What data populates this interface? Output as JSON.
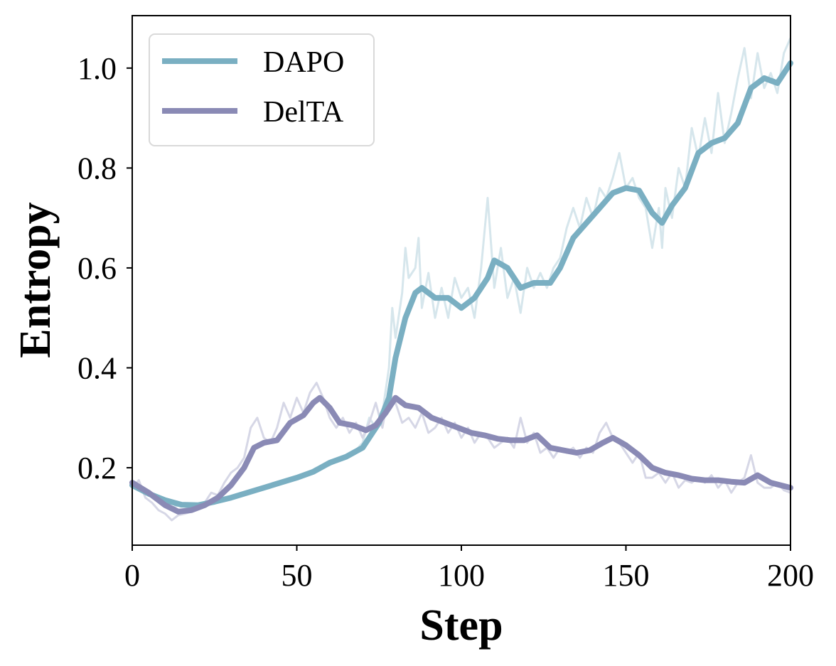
{
  "chart_data": {
    "type": "line",
    "title": "",
    "xlabel": "Step",
    "ylabel": "Entropy",
    "xlim": [
      0,
      200
    ],
    "ylim": [
      0.045,
      1.105
    ],
    "xticks": [
      0,
      50,
      100,
      150,
      200
    ],
    "xtick_labels": [
      "0",
      "50",
      "100",
      "150",
      "200"
    ],
    "yticks": [
      0.2,
      0.4,
      0.6,
      0.8,
      1.0
    ],
    "ytick_labels": [
      "0.2",
      "0.4",
      "0.6",
      "0.8",
      "1.0"
    ],
    "grid": false,
    "legend_position": "top-left",
    "series": [
      {
        "name": "DAPO",
        "color": "#7aafc2",
        "raw_color": "#d6e6ec",
        "smoothed": [
          [
            0,
            0.165
          ],
          [
            5,
            0.148
          ],
          [
            10,
            0.135
          ],
          [
            15,
            0.126
          ],
          [
            20,
            0.125
          ],
          [
            25,
            0.132
          ],
          [
            30,
            0.14
          ],
          [
            35,
            0.15
          ],
          [
            40,
            0.16
          ],
          [
            45,
            0.17
          ],
          [
            50,
            0.18
          ],
          [
            55,
            0.192
          ],
          [
            60,
            0.21
          ],
          [
            65,
            0.222
          ],
          [
            70,
            0.24
          ],
          [
            75,
            0.29
          ],
          [
            78,
            0.34
          ],
          [
            80,
            0.42
          ],
          [
            83,
            0.5
          ],
          [
            86,
            0.55
          ],
          [
            88,
            0.56
          ],
          [
            92,
            0.54
          ],
          [
            96,
            0.54
          ],
          [
            100,
            0.52
          ],
          [
            104,
            0.54
          ],
          [
            108,
            0.58
          ],
          [
            110,
            0.615
          ],
          [
            114,
            0.6
          ],
          [
            118,
            0.56
          ],
          [
            122,
            0.57
          ],
          [
            127,
            0.57
          ],
          [
            130,
            0.6
          ],
          [
            134,
            0.66
          ],
          [
            138,
            0.69
          ],
          [
            142,
            0.72
          ],
          [
            146,
            0.75
          ],
          [
            150,
            0.76
          ],
          [
            154,
            0.755
          ],
          [
            158,
            0.71
          ],
          [
            161,
            0.69
          ],
          [
            164,
            0.725
          ],
          [
            168,
            0.76
          ],
          [
            172,
            0.83
          ],
          [
            176,
            0.85
          ],
          [
            180,
            0.86
          ],
          [
            184,
            0.89
          ],
          [
            188,
            0.96
          ],
          [
            192,
            0.98
          ],
          [
            196,
            0.97
          ],
          [
            200,
            1.01
          ]
        ],
        "raw": [
          [
            0,
            0.17
          ],
          [
            2,
            0.16
          ],
          [
            4,
            0.15
          ],
          [
            6,
            0.14
          ],
          [
            8,
            0.132
          ],
          [
            10,
            0.127
          ],
          [
            12,
            0.12
          ],
          [
            14,
            0.125
          ],
          [
            16,
            0.122
          ],
          [
            18,
            0.12
          ],
          [
            20,
            0.123
          ],
          [
            24,
            0.13
          ],
          [
            28,
            0.138
          ],
          [
            32,
            0.145
          ],
          [
            36,
            0.15
          ],
          [
            40,
            0.158
          ],
          [
            44,
            0.165
          ],
          [
            48,
            0.175
          ],
          [
            52,
            0.185
          ],
          [
            56,
            0.2
          ],
          [
            60,
            0.205
          ],
          [
            64,
            0.22
          ],
          [
            68,
            0.235
          ],
          [
            70,
            0.25
          ],
          [
            72,
            0.3
          ],
          [
            74,
            0.28
          ],
          [
            76,
            0.31
          ],
          [
            78,
            0.4
          ],
          [
            79,
            0.52
          ],
          [
            80,
            0.46
          ],
          [
            82,
            0.55
          ],
          [
            83,
            0.64
          ],
          [
            84,
            0.58
          ],
          [
            86,
            0.6
          ],
          [
            87,
            0.66
          ],
          [
            88,
            0.52
          ],
          [
            90,
            0.59
          ],
          [
            92,
            0.5
          ],
          [
            94,
            0.56
          ],
          [
            96,
            0.5
          ],
          [
            98,
            0.58
          ],
          [
            100,
            0.54
          ],
          [
            102,
            0.56
          ],
          [
            104,
            0.5
          ],
          [
            106,
            0.6
          ],
          [
            108,
            0.74
          ],
          [
            110,
            0.56
          ],
          [
            112,
            0.64
          ],
          [
            114,
            0.54
          ],
          [
            116,
            0.58
          ],
          [
            118,
            0.51
          ],
          [
            120,
            0.6
          ],
          [
            122,
            0.56
          ],
          [
            124,
            0.59
          ],
          [
            126,
            0.56
          ],
          [
            128,
            0.6
          ],
          [
            130,
            0.62
          ],
          [
            132,
            0.68
          ],
          [
            134,
            0.72
          ],
          [
            136,
            0.68
          ],
          [
            138,
            0.74
          ],
          [
            140,
            0.7
          ],
          [
            142,
            0.76
          ],
          [
            144,
            0.74
          ],
          [
            146,
            0.78
          ],
          [
            148,
            0.83
          ],
          [
            150,
            0.76
          ],
          [
            152,
            0.78
          ],
          [
            154,
            0.74
          ],
          [
            156,
            0.72
          ],
          [
            158,
            0.64
          ],
          [
            160,
            0.72
          ],
          [
            161,
            0.64
          ],
          [
            162,
            0.76
          ],
          [
            164,
            0.7
          ],
          [
            166,
            0.8
          ],
          [
            168,
            0.76
          ],
          [
            170,
            0.88
          ],
          [
            172,
            0.82
          ],
          [
            174,
            0.9
          ],
          [
            176,
            0.83
          ],
          [
            178,
            0.95
          ],
          [
            180,
            0.85
          ],
          [
            182,
            0.91
          ],
          [
            184,
            0.98
          ],
          [
            186,
            1.04
          ],
          [
            188,
            0.94
          ],
          [
            190,
            1.03
          ],
          [
            192,
            0.96
          ],
          [
            194,
            0.99
          ],
          [
            196,
            0.95
          ],
          [
            198,
            1.03
          ],
          [
            200,
            1.06
          ]
        ]
      },
      {
        "name": "DelTA",
        "color": "#8a8ab5",
        "raw_color": "#d6d7e6",
        "smoothed": [
          [
            0,
            0.17
          ],
          [
            5,
            0.15
          ],
          [
            10,
            0.125
          ],
          [
            14,
            0.112
          ],
          [
            18,
            0.115
          ],
          [
            22,
            0.125
          ],
          [
            26,
            0.14
          ],
          [
            30,
            0.165
          ],
          [
            34,
            0.2
          ],
          [
            37,
            0.24
          ],
          [
            40,
            0.25
          ],
          [
            44,
            0.255
          ],
          [
            48,
            0.29
          ],
          [
            52,
            0.305
          ],
          [
            55,
            0.33
          ],
          [
            57,
            0.34
          ],
          [
            60,
            0.32
          ],
          [
            63,
            0.29
          ],
          [
            67,
            0.285
          ],
          [
            71,
            0.275
          ],
          [
            74,
            0.285
          ],
          [
            77,
            0.31
          ],
          [
            80,
            0.34
          ],
          [
            83,
            0.325
          ],
          [
            87,
            0.32
          ],
          [
            91,
            0.3
          ],
          [
            95,
            0.29
          ],
          [
            99,
            0.28
          ],
          [
            103,
            0.27
          ],
          [
            107,
            0.265
          ],
          [
            111,
            0.258
          ],
          [
            115,
            0.255
          ],
          [
            119,
            0.255
          ],
          [
            123,
            0.265
          ],
          [
            127,
            0.24
          ],
          [
            131,
            0.235
          ],
          [
            135,
            0.23
          ],
          [
            139,
            0.235
          ],
          [
            143,
            0.25
          ],
          [
            146,
            0.26
          ],
          [
            150,
            0.245
          ],
          [
            154,
            0.225
          ],
          [
            158,
            0.2
          ],
          [
            162,
            0.19
          ],
          [
            166,
            0.185
          ],
          [
            170,
            0.178
          ],
          [
            174,
            0.175
          ],
          [
            178,
            0.175
          ],
          [
            182,
            0.172
          ],
          [
            186,
            0.17
          ],
          [
            190,
            0.185
          ],
          [
            194,
            0.17
          ],
          [
            200,
            0.16
          ]
        ],
        "raw": [
          [
            0,
            0.16
          ],
          [
            2,
            0.175
          ],
          [
            4,
            0.14
          ],
          [
            6,
            0.13
          ],
          [
            8,
            0.115
          ],
          [
            10,
            0.108
          ],
          [
            12,
            0.095
          ],
          [
            14,
            0.105
          ],
          [
            16,
            0.108
          ],
          [
            18,
            0.112
          ],
          [
            20,
            0.12
          ],
          [
            22,
            0.13
          ],
          [
            24,
            0.15
          ],
          [
            26,
            0.145
          ],
          [
            28,
            0.17
          ],
          [
            30,
            0.19
          ],
          [
            32,
            0.2
          ],
          [
            34,
            0.22
          ],
          [
            36,
            0.28
          ],
          [
            38,
            0.3
          ],
          [
            40,
            0.26
          ],
          [
            42,
            0.25
          ],
          [
            44,
            0.28
          ],
          [
            46,
            0.33
          ],
          [
            48,
            0.3
          ],
          [
            50,
            0.34
          ],
          [
            52,
            0.31
          ],
          [
            54,
            0.35
          ],
          [
            56,
            0.37
          ],
          [
            58,
            0.34
          ],
          [
            60,
            0.3
          ],
          [
            62,
            0.28
          ],
          [
            64,
            0.3
          ],
          [
            66,
            0.27
          ],
          [
            68,
            0.29
          ],
          [
            70,
            0.26
          ],
          [
            72,
            0.29
          ],
          [
            74,
            0.33
          ],
          [
            76,
            0.28
          ],
          [
            78,
            0.35
          ],
          [
            80,
            0.33
          ],
          [
            82,
            0.29
          ],
          [
            84,
            0.3
          ],
          [
            86,
            0.28
          ],
          [
            88,
            0.31
          ],
          [
            90,
            0.27
          ],
          [
            92,
            0.28
          ],
          [
            94,
            0.3
          ],
          [
            96,
            0.27
          ],
          [
            98,
            0.29
          ],
          [
            100,
            0.26
          ],
          [
            102,
            0.28
          ],
          [
            104,
            0.25
          ],
          [
            106,
            0.27
          ],
          [
            108,
            0.26
          ],
          [
            110,
            0.24
          ],
          [
            112,
            0.25
          ],
          [
            114,
            0.26
          ],
          [
            116,
            0.24
          ],
          [
            118,
            0.3
          ],
          [
            120,
            0.25
          ],
          [
            122,
            0.27
          ],
          [
            124,
            0.23
          ],
          [
            126,
            0.24
          ],
          [
            128,
            0.22
          ],
          [
            130,
            0.24
          ],
          [
            132,
            0.23
          ],
          [
            134,
            0.24
          ],
          [
            136,
            0.22
          ],
          [
            138,
            0.24
          ],
          [
            140,
            0.23
          ],
          [
            142,
            0.27
          ],
          [
            144,
            0.29
          ],
          [
            146,
            0.26
          ],
          [
            148,
            0.25
          ],
          [
            150,
            0.23
          ],
          [
            152,
            0.21
          ],
          [
            154,
            0.23
          ],
          [
            156,
            0.18
          ],
          [
            158,
            0.18
          ],
          [
            160,
            0.19
          ],
          [
            162,
            0.17
          ],
          [
            164,
            0.19
          ],
          [
            166,
            0.16
          ],
          [
            168,
            0.175
          ],
          [
            170,
            0.17
          ],
          [
            172,
            0.18
          ],
          [
            174,
            0.17
          ],
          [
            176,
            0.185
          ],
          [
            178,
            0.16
          ],
          [
            180,
            0.175
          ],
          [
            182,
            0.15
          ],
          [
            184,
            0.17
          ],
          [
            186,
            0.18
          ],
          [
            188,
            0.225
          ],
          [
            190,
            0.17
          ],
          [
            192,
            0.16
          ],
          [
            194,
            0.16
          ],
          [
            196,
            0.17
          ],
          [
            198,
            0.155
          ],
          [
            200,
            0.15
          ]
        ]
      }
    ]
  }
}
